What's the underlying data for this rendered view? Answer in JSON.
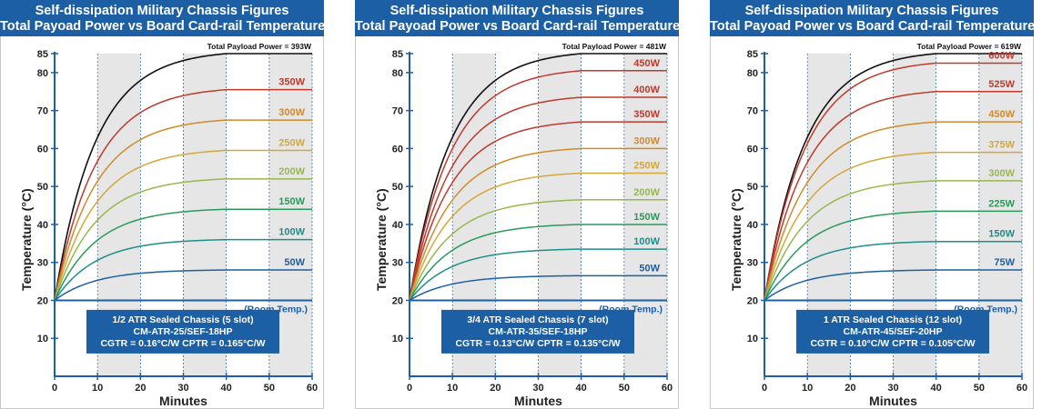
{
  "panels": [
    {
      "title": "Self-dissipation Military Chassis Figures",
      "subtitle": "Total Payoad Power vs Board Card-rail Temperature",
      "chart_data": {
        "type": "line",
        "xlabel": "Minutes",
        "ylabel": "Temperature (°C)",
        "xlim": [
          0,
          60
        ],
        "ylim": [
          0,
          85
        ],
        "xticks": [
          0,
          10,
          20,
          30,
          40,
          50,
          60
        ],
        "yticks": [
          10,
          20,
          30,
          40,
          50,
          60,
          70,
          80,
          85
        ],
        "shaded_bands": [
          [
            10,
            20
          ],
          [
            30,
            40
          ],
          [
            50,
            60
          ]
        ],
        "room_temp": 20,
        "room_label": "(Room Temp.)",
        "total_label": "Total Payload Power = 393W",
        "total_final": 85,
        "series": [
          {
            "name": "350W",
            "final": 75.5,
            "color": "#c0392b"
          },
          {
            "name": "300W",
            "final": 67.5,
            "color": "#d08a2a"
          },
          {
            "name": "250W",
            "final": 59.5,
            "color": "#d3a83a"
          },
          {
            "name": "200W",
            "final": 52,
            "color": "#96b84c"
          },
          {
            "name": "150W",
            "final": 44,
            "color": "#2a9a5a"
          },
          {
            "name": "100W",
            "final": 36,
            "color": "#1d8e8a"
          },
          {
            "name": "50W",
            "final": 28,
            "color": "#1d5fa4"
          }
        ],
        "info_box": [
          "1/2 ATR Sealed Chassis (5 slot)",
          "CM-ATR-25/SEF-18HP",
          "CGTR = 0.16°C/W   CPTR = 0.165°C/W"
        ]
      }
    },
    {
      "title": "Self-dissipation Military Chassis Figures",
      "subtitle": "Total Payoad Power vs Board Card-rail Temperature",
      "chart_data": {
        "type": "line",
        "xlabel": "Minutes",
        "ylabel": "Temperature (°C)",
        "xlim": [
          0,
          60
        ],
        "ylim": [
          0,
          85
        ],
        "xticks": [
          0,
          10,
          20,
          30,
          40,
          50,
          60
        ],
        "yticks": [
          10,
          20,
          30,
          40,
          50,
          60,
          70,
          80,
          85
        ],
        "shaded_bands": [
          [
            10,
            20
          ],
          [
            30,
            40
          ],
          [
            50,
            60
          ]
        ],
        "room_temp": 20,
        "room_label": "(Room Temp.)",
        "total_label": "Total Payload Power = 481W",
        "total_final": 85,
        "series": [
          {
            "name": "450W",
            "final": 80.5,
            "color": "#c0392b"
          },
          {
            "name": "400W",
            "final": 73.5,
            "color": "#c0392b"
          },
          {
            "name": "350W",
            "final": 67,
            "color": "#c0392b"
          },
          {
            "name": "300W",
            "final": 60,
            "color": "#d08a2a"
          },
          {
            "name": "250W",
            "final": 53.5,
            "color": "#d3a83a"
          },
          {
            "name": "200W",
            "final": 46.5,
            "color": "#96b84c"
          },
          {
            "name": "150W",
            "final": 40,
            "color": "#2a9a5a"
          },
          {
            "name": "100W",
            "final": 33.5,
            "color": "#1d8e8a"
          },
          {
            "name": "50W",
            "final": 26.5,
            "color": "#1d5fa4"
          }
        ],
        "info_box": [
          "3/4 ATR Sealed Chassis (7 slot)",
          "CM-ATR-35/SEF-18HP",
          "CGTR = 0.13°C/W   CPTR = 0.135°C/W"
        ]
      }
    },
    {
      "title": "Self-dissipation Military Chassis Figures",
      "subtitle": "Total Payoad Power vs Board Card-rail Temperature",
      "chart_data": {
        "type": "line",
        "xlabel": "Minutes",
        "ylabel": "Temperature (°C)",
        "xlim": [
          0,
          60
        ],
        "ylim": [
          0,
          85
        ],
        "xticks": [
          0,
          10,
          20,
          30,
          40,
          50,
          60
        ],
        "yticks": [
          10,
          20,
          30,
          40,
          50,
          60,
          70,
          80,
          85
        ],
        "shaded_bands": [
          [
            10,
            20
          ],
          [
            30,
            40
          ],
          [
            50,
            60
          ]
        ],
        "room_temp": 20,
        "room_label": "(Room Temp.)",
        "total_label": "Total Payload Power = 619W",
        "total_final": 85,
        "series": [
          {
            "name": "600W",
            "final": 82.5,
            "color": "#c0392b"
          },
          {
            "name": "525W",
            "final": 75,
            "color": "#c0392b"
          },
          {
            "name": "450W",
            "final": 67,
            "color": "#d08a2a"
          },
          {
            "name": "375W",
            "final": 59,
            "color": "#d3a83a"
          },
          {
            "name": "300W",
            "final": 51.5,
            "color": "#96b84c"
          },
          {
            "name": "225W",
            "final": 43.5,
            "color": "#2a9a5a"
          },
          {
            "name": "150W",
            "final": 35.5,
            "color": "#1d8e8a"
          },
          {
            "name": "75W",
            "final": 28,
            "color": "#1d5fa4"
          }
        ],
        "info_box": [
          "1 ATR Sealed Chassis (12 slot)",
          "CM-ATR-45/SEF-20HP",
          "CGTR = 0.10°C/W   CPTR = 0.105°C/W"
        ]
      }
    }
  ]
}
